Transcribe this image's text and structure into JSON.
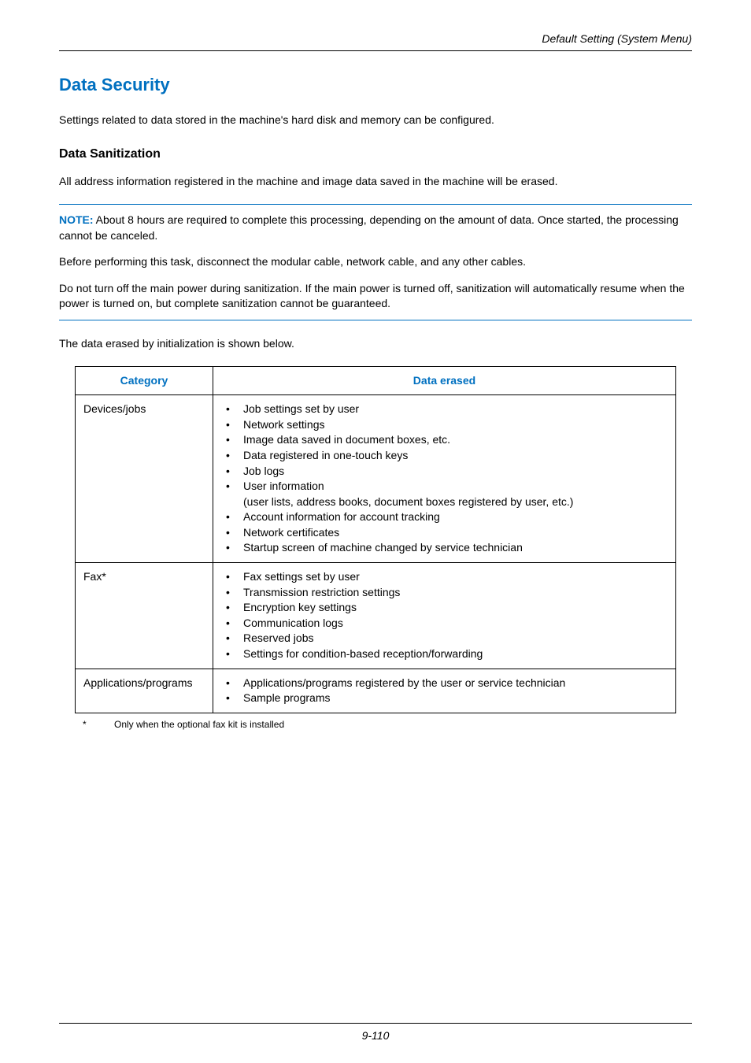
{
  "header": {
    "right": "Default Setting (System Menu)"
  },
  "title": "Data Security",
  "intro": "Settings related to data stored in the machine's hard disk and memory can be configured.",
  "subheading": "Data Sanitization",
  "sub_intro": "All address information registered in the machine and image data saved in the machine will be erased.",
  "note": {
    "label": "NOTE:",
    "p1_rest": " About 8 hours are required to complete this processing, depending on the amount of data. Once started, the processing cannot be canceled.",
    "p2": "Before performing this task, disconnect the modular cable, network cable, and any other cables.",
    "p3": "Do not turn off the main power during sanitization. If the main power is turned off, sanitization will automatically resume when the power is turned on, but complete sanitization cannot be guaranteed."
  },
  "table_intro": "The data erased by initialization is shown below.",
  "table": {
    "headers": {
      "category": "Category",
      "data_erased": "Data erased"
    },
    "rows": [
      {
        "category": "Devices/jobs",
        "items": [
          "Job  settings set by user",
          "Network settings",
          "Image data saved in document boxes, etc.",
          "Data registered in one-touch keys",
          "Job logs",
          "User information",
          "(user lists, address books, document boxes registered by user, etc.)",
          "Account information for account tracking",
          "Network certificates",
          "Startup screen of machine changed by service technician"
        ],
        "sub_indices": [
          6
        ]
      },
      {
        "category": "Fax*",
        "items": [
          "Fax settings set by user",
          "Transmission restriction settings",
          "Encryption key settings",
          "Communication logs",
          "Reserved jobs",
          "Settings for condition-based reception/forwarding"
        ],
        "sub_indices": []
      },
      {
        "category": "Applications/programs",
        "items": [
          "Applications/programs registered by the user or service technician",
          "Sample programs"
        ],
        "sub_indices": []
      }
    ]
  },
  "footnote": {
    "ast": "*",
    "text": "Only when the optional fax kit is installed"
  },
  "footer_page": "9-110"
}
